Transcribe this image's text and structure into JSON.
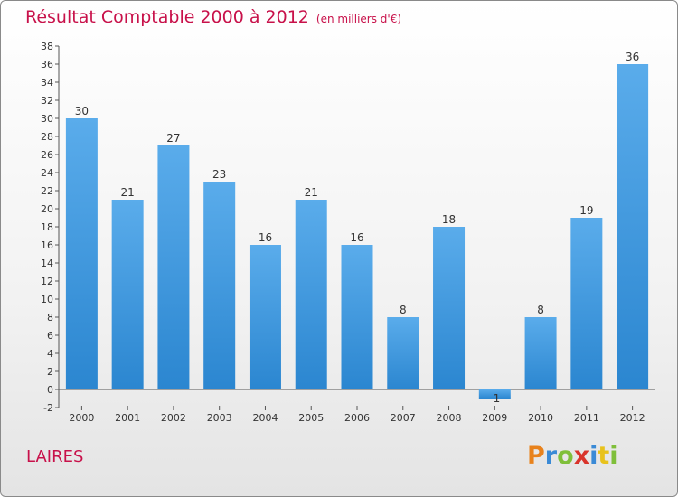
{
  "chart_data": {
    "type": "bar",
    "title": "Résultat Comptable 2000 à 2012",
    "subtitle": "(en milliers d'€)",
    "categories": [
      "2000",
      "2001",
      "2002",
      "2003",
      "2004",
      "2005",
      "2006",
      "2007",
      "2008",
      "2009",
      "2010",
      "2011",
      "2012"
    ],
    "values": [
      30,
      21,
      27,
      23,
      16,
      21,
      16,
      8,
      18,
      -1,
      8,
      19,
      36
    ],
    "xlabel": "",
    "ylabel": "",
    "ylim": [
      -2,
      38
    ],
    "ytick_step": 2,
    "grid": false,
    "bar_color": "#2b86d0"
  },
  "commune": "LAIRES",
  "logo": {
    "letters": [
      "P",
      "r",
      "o",
      "x",
      "i",
      "t",
      "i"
    ],
    "colors": [
      "#e8821c",
      "#3a8ad6",
      "#7fbf3a",
      "#d9342b",
      "#3a8ad6",
      "#e8c21c",
      "#7fbf3a"
    ]
  }
}
